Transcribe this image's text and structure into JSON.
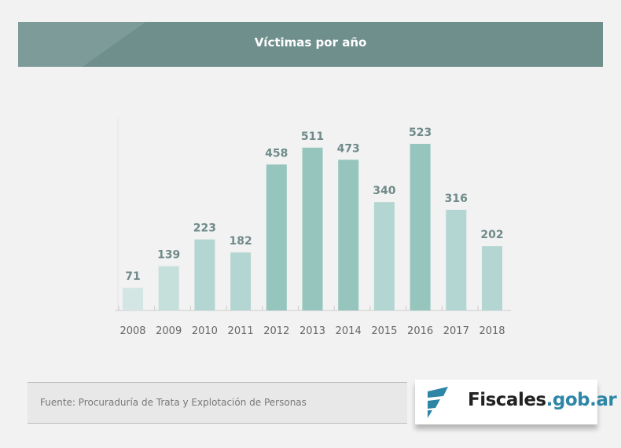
{
  "header": {
    "title": "Víctimas por año"
  },
  "chart_data": {
    "type": "bar",
    "title": "Víctimas por año",
    "categories": [
      "2008",
      "2009",
      "2010",
      "2011",
      "2012",
      "2013",
      "2014",
      "2015",
      "2016",
      "2017",
      "2018"
    ],
    "values": [
      71,
      139,
      223,
      182,
      458,
      511,
      473,
      340,
      523,
      316,
      202
    ],
    "colors": [
      "#d3e6e3",
      "#c5dfdb",
      "#b3d6d2",
      "#b3d6d2",
      "#95c5bd",
      "#95c5bd",
      "#95c5bd",
      "#b3d6d2",
      "#95c5bd",
      "#b3d6d2",
      "#b3d6d2"
    ],
    "xlabel": "",
    "ylabel": "",
    "ylim": [
      0,
      523
    ],
    "grid": false
  },
  "footer": {
    "source": "Fuente: Procuraduría de Trata y Explotación de Personas",
    "logo_main": "Fiscales",
    "logo_accent": ".gob.ar"
  }
}
